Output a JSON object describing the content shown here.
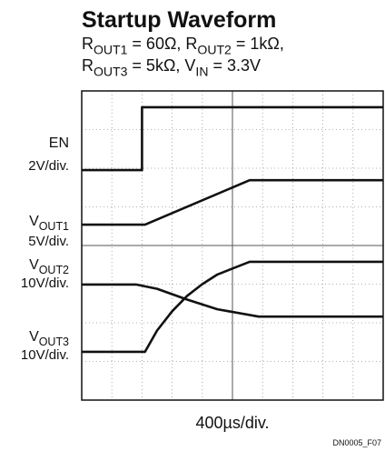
{
  "chart_data": {
    "type": "line",
    "title": "Startup Waveform",
    "subtitle": [
      [
        {
          "text": "R"
        },
        {
          "sub": "OUT1"
        },
        {
          "text": " = 60Ω, R"
        },
        {
          "sub": "OUT2"
        },
        {
          "text": " = 1kΩ,"
        }
      ],
      [
        {
          "text": "R"
        },
        {
          "sub": "OUT3"
        },
        {
          "text": " = 5kΩ, V"
        },
        {
          "sub": "IN"
        },
        {
          "text": " = 3.3V"
        }
      ]
    ],
    "x_label": "400µs/div.",
    "figure_id": "DN0005_F07",
    "xlim": [
      0,
      10
    ],
    "ylim": [
      0,
      8
    ],
    "xticks": [
      0,
      1,
      2,
      3,
      4,
      5,
      6,
      7,
      8,
      9,
      10
    ],
    "yticks": [
      0,
      1,
      2,
      3,
      4,
      5,
      6,
      7,
      8
    ],
    "grid": true,
    "series": [
      {
        "label": [
          {
            "text": "EN"
          }
        ],
        "scale": "2V/div.",
        "color": "#111111",
        "x": [
          0,
          2,
          2,
          10
        ],
        "values": [
          5.95,
          5.95,
          7.58,
          7.58
        ]
      },
      {
        "label": [
          {
            "text": "V"
          },
          {
            "sub": "OUT1"
          }
        ],
        "scale": "5V/div.",
        "color": "#111111",
        "x": [
          0,
          2.1,
          5.57,
          10
        ],
        "values": [
          4.54,
          4.54,
          5.69,
          5.69
        ]
      },
      {
        "label": [
          {
            "text": "V"
          },
          {
            "sub": "OUT2"
          }
        ],
        "scale": "10V/div.",
        "color": "#111111",
        "x": [
          0,
          1.8,
          2.5,
          3.5,
          4.5,
          5.87,
          10
        ],
        "values": [
          2.99,
          2.99,
          2.88,
          2.6,
          2.35,
          2.16,
          2.16
        ]
      },
      {
        "label": [
          {
            "text": "V"
          },
          {
            "sub": "OUT3"
          }
        ],
        "scale": "10V/div.",
        "color": "#111111",
        "x": [
          0,
          2.1,
          2.5,
          3.0,
          3.5,
          4.0,
          4.5,
          5.57,
          10
        ],
        "values": [
          1.25,
          1.25,
          1.8,
          2.3,
          2.7,
          3.0,
          3.25,
          3.58,
          3.58
        ]
      }
    ]
  }
}
